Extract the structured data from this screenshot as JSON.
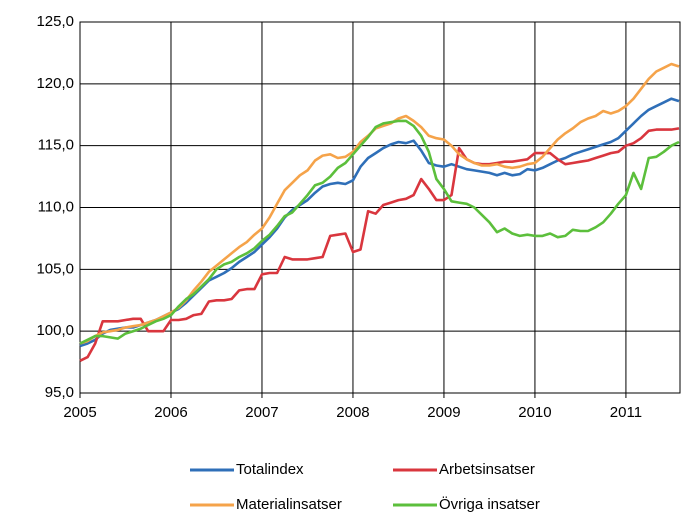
{
  "chart_data": {
    "type": "line",
    "categories": [
      "2005",
      null,
      null,
      null,
      null,
      null,
      null,
      null,
      null,
      null,
      null,
      null,
      "2006",
      null,
      null,
      null,
      null,
      null,
      null,
      null,
      null,
      null,
      null,
      null,
      "2007",
      null,
      null,
      null,
      null,
      null,
      null,
      null,
      null,
      null,
      null,
      null,
      "2008",
      null,
      null,
      null,
      null,
      null,
      null,
      null,
      null,
      null,
      null,
      null,
      "2009",
      null,
      null,
      null,
      null,
      null,
      null,
      null,
      null,
      null,
      null,
      null,
      "2010",
      null,
      null,
      null,
      null,
      null,
      null,
      null,
      null,
      null,
      null,
      null,
      "2011",
      null,
      null,
      null,
      null,
      null,
      null,
      null
    ],
    "series": [
      {
        "name": "Totalindex",
        "color": "#2f6fb8",
        "values": [
          98.8,
          99.0,
          99.3,
          99.8,
          100.1,
          100.2,
          100.3,
          100.3,
          100.5,
          100.7,
          100.9,
          101.2,
          101.5,
          101.8,
          102.3,
          102.9,
          103.5,
          104.1,
          104.4,
          104.7,
          105.1,
          105.6,
          106.0,
          106.4,
          107.0,
          107.6,
          108.3,
          109.2,
          109.8,
          110.2,
          110.6,
          111.2,
          111.7,
          111.9,
          112.0,
          111.9,
          112.2,
          113.3,
          114.0,
          114.4,
          114.8,
          115.1,
          115.3,
          115.2,
          115.4,
          114.6,
          113.6,
          113.4,
          113.3,
          113.5,
          113.3,
          113.1,
          113.0,
          112.9,
          112.8,
          112.6,
          112.8,
          112.6,
          112.7,
          113.1,
          113.0,
          113.2,
          113.5,
          113.8,
          114.0,
          114.3,
          114.5,
          114.7,
          114.9,
          115.1,
          115.3,
          115.6,
          116.2,
          116.8,
          117.4,
          117.9,
          118.2,
          118.5,
          118.8,
          118.6
        ]
      },
      {
        "name": "Arbetsinsatser",
        "color": "#d9363e",
        "values": [
          97.6,
          97.9,
          99.0,
          100.8,
          100.8,
          100.8,
          100.9,
          101.0,
          101.0,
          100.0,
          100.0,
          100.0,
          100.9,
          100.9,
          101.0,
          101.3,
          101.4,
          102.4,
          102.5,
          102.5,
          102.6,
          103.3,
          103.4,
          103.4,
          104.6,
          104.7,
          104.7,
          106.0,
          105.8,
          105.8,
          105.8,
          105.9,
          106.0,
          107.7,
          107.8,
          107.9,
          106.4,
          106.6,
          109.7,
          109.5,
          110.2,
          110.4,
          110.6,
          110.7,
          111.0,
          112.3,
          111.5,
          110.6,
          110.6,
          111.0,
          114.8,
          113.9,
          113.6,
          113.5,
          113.5,
          113.6,
          113.7,
          113.7,
          113.8,
          113.9,
          114.4,
          114.4,
          114.4,
          113.9,
          113.5,
          113.6,
          113.7,
          113.8,
          114.0,
          114.2,
          114.4,
          114.5,
          115.0,
          115.2,
          115.6,
          116.2,
          116.3,
          116.3,
          116.3,
          116.4
        ]
      },
      {
        "name": "Materialinsatser",
        "color": "#f5a34a",
        "values": [
          99.0,
          99.2,
          99.6,
          99.9,
          100.0,
          100.1,
          100.3,
          100.4,
          100.5,
          100.7,
          100.9,
          101.2,
          101.5,
          101.9,
          102.5,
          103.3,
          104.0,
          104.8,
          105.3,
          105.8,
          106.3,
          106.8,
          107.2,
          107.8,
          108.3,
          109.2,
          110.3,
          111.4,
          112.0,
          112.6,
          113.0,
          113.8,
          114.2,
          114.3,
          114.0,
          114.1,
          114.5,
          115.3,
          115.8,
          116.4,
          116.6,
          116.8,
          117.2,
          117.4,
          117.0,
          116.5,
          115.8,
          115.6,
          115.5,
          115.0,
          114.3,
          113.9,
          113.6,
          113.4,
          113.4,
          113.5,
          113.3,
          113.2,
          113.3,
          113.5,
          113.6,
          114.1,
          114.8,
          115.5,
          116.0,
          116.4,
          116.9,
          117.2,
          117.4,
          117.8,
          117.6,
          117.8,
          118.2,
          118.8,
          119.6,
          120.4,
          121.0,
          121.3,
          121.6,
          121.4
        ]
      },
      {
        "name": "Övriga insatser",
        "color": "#5cbf3c",
        "values": [
          99.0,
          99.3,
          99.6,
          99.6,
          99.5,
          99.4,
          99.8,
          100.0,
          100.2,
          100.5,
          100.8,
          101.0,
          101.3,
          102.0,
          102.6,
          103.0,
          103.6,
          104.2,
          105.0,
          105.4,
          105.6,
          106.0,
          106.3,
          106.7,
          107.3,
          107.8,
          108.5,
          109.3,
          109.6,
          110.3,
          111.0,
          111.8,
          112.0,
          112.5,
          113.2,
          113.6,
          114.3,
          115.0,
          115.7,
          116.5,
          116.8,
          116.9,
          117.0,
          117.0,
          116.6,
          115.8,
          114.5,
          112.3,
          111.5,
          110.5,
          110.4,
          110.3,
          110.0,
          109.4,
          108.8,
          108.0,
          108.3,
          107.9,
          107.7,
          107.8,
          107.7,
          107.7,
          107.9,
          107.6,
          107.7,
          108.2,
          108.1,
          108.1,
          108.4,
          108.8,
          109.5,
          110.3,
          111.0,
          112.8,
          111.5,
          114.0,
          114.1,
          114.5,
          115.0,
          115.3
        ]
      }
    ],
    "ylim": [
      95,
      125
    ],
    "yticks": [
      {
        "value": 95,
        "label": "95,0"
      },
      {
        "value": 100,
        "label": "100,0"
      },
      {
        "value": 105,
        "label": "105,0"
      },
      {
        "value": 110,
        "label": "110,0"
      },
      {
        "value": 115,
        "label": "115,0"
      },
      {
        "value": 120,
        "label": "120,0"
      },
      {
        "value": 125,
        "label": "125,0"
      }
    ],
    "grid": true
  }
}
